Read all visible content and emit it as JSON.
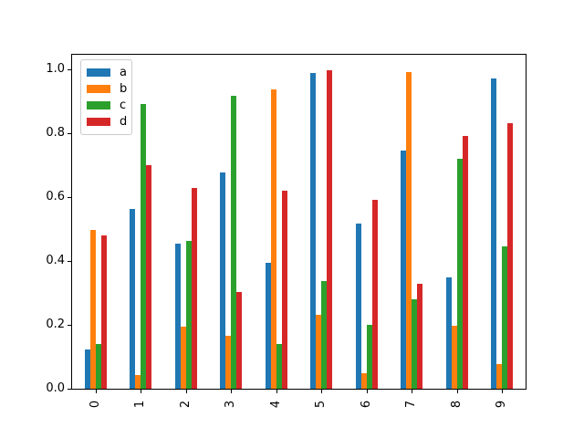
{
  "figure": {
    "background": "#ffffff",
    "title": ""
  },
  "chart_data": {
    "type": "bar",
    "title": "",
    "xlabel": "",
    "ylabel": "",
    "categories": [
      "0",
      "1",
      "2",
      "3",
      "4",
      "5",
      "6",
      "7",
      "8",
      "9"
    ],
    "series": [
      {
        "name": "a",
        "color": "#1f77b4",
        "values": [
          0.122,
          0.564,
          0.455,
          0.677,
          0.394,
          0.989,
          0.516,
          0.745,
          0.348,
          0.973
        ]
      },
      {
        "name": "b",
        "color": "#ff7f0e",
        "values": [
          0.497,
          0.042,
          0.194,
          0.165,
          0.937,
          0.232,
          0.048,
          0.992,
          0.198,
          0.078
        ]
      },
      {
        "name": "c",
        "color": "#2ca02c",
        "values": [
          0.139,
          0.892,
          0.464,
          0.917,
          0.139,
          0.337,
          0.2,
          0.281,
          0.721,
          0.445
        ]
      },
      {
        "name": "d",
        "color": "#d62728",
        "values": [
          0.479,
          0.699,
          0.628,
          0.303,
          0.619,
          0.998,
          0.593,
          0.328,
          0.793,
          0.833
        ]
      }
    ],
    "ylim": [
      0,
      1.046
    ],
    "yticks": [
      0.0,
      0.2,
      0.4,
      0.6,
      0.8,
      1.0
    ],
    "ytick_labels": [
      "0.0",
      "0.2",
      "0.4",
      "0.6",
      "0.8",
      "1.0"
    ],
    "xtick_rotation": 90,
    "grid": false,
    "legend": {
      "position": "upper left",
      "entries": [
        "a",
        "b",
        "c",
        "d"
      ]
    },
    "axis_color": "#000000",
    "plot_background": "#ffffff"
  }
}
